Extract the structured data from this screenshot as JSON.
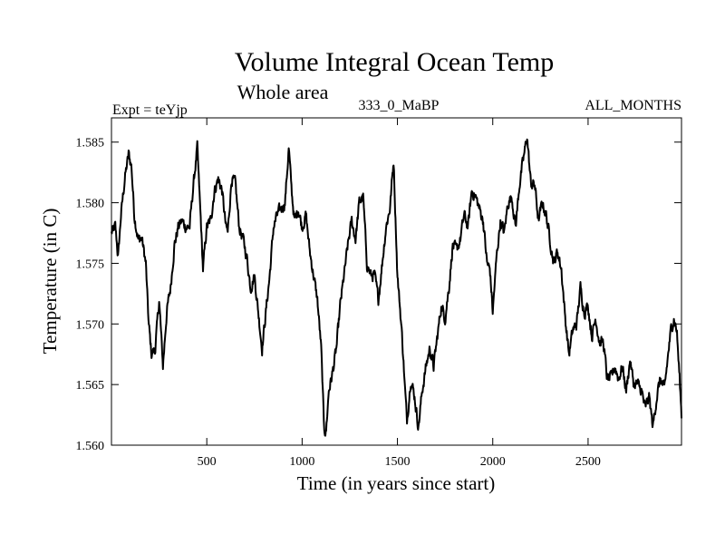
{
  "chart_data": {
    "type": "line",
    "title": "Volume Integral Ocean Temp",
    "subtitle": "Whole area",
    "experiment_label": "Expt = teYjp",
    "period_label": "333_0_MaBP",
    "months_label": "ALL_MONTHS",
    "xlabel": "Time (in years since start)",
    "ylabel": "Temperature (in C)",
    "xlim": [
      0,
      2990
    ],
    "ylim": [
      1.56,
      1.587
    ],
    "xticks": [
      500,
      1000,
      1500,
      2000,
      2500
    ],
    "yticks": [
      1.56,
      1.565,
      1.57,
      1.575,
      1.58,
      1.585
    ],
    "xtick_labels": [
      "500",
      "1000",
      "1500",
      "2000",
      "2500"
    ],
    "ytick_labels": [
      "1.560",
      "1.565",
      "1.570",
      "1.575",
      "1.580",
      "1.585"
    ],
    "grid": false,
    "series": [
      {
        "name": "Volume integral ocean temperature",
        "color": "#000000",
        "anchors": [
          [
            0,
            1.5775
          ],
          [
            20,
            1.578
          ],
          [
            35,
            1.5755
          ],
          [
            50,
            1.579
          ],
          [
            70,
            1.582
          ],
          [
            90,
            1.584
          ],
          [
            105,
            1.583
          ],
          [
            120,
            1.579
          ],
          [
            140,
            1.577
          ],
          [
            160,
            1.577
          ],
          [
            180,
            1.575
          ],
          [
            195,
            1.57
          ],
          [
            210,
            1.5675
          ],
          [
            230,
            1.568
          ],
          [
            250,
            1.572
          ],
          [
            270,
            1.5665
          ],
          [
            290,
            1.571
          ],
          [
            310,
            1.573
          ],
          [
            330,
            1.5765
          ],
          [
            350,
            1.578
          ],
          [
            370,
            1.5785
          ],
          [
            390,
            1.578
          ],
          [
            410,
            1.578
          ],
          [
            430,
            1.5815
          ],
          [
            450,
            1.5845
          ],
          [
            470,
            1.578
          ],
          [
            480,
            1.5745
          ],
          [
            500,
            1.578
          ],
          [
            520,
            1.5785
          ],
          [
            540,
            1.581
          ],
          [
            560,
            1.582
          ],
          [
            580,
            1.581
          ],
          [
            600,
            1.578
          ],
          [
            610,
            1.5775
          ],
          [
            630,
            1.582
          ],
          [
            650,
            1.5815
          ],
          [
            670,
            1.578
          ],
          [
            690,
            1.577
          ],
          [
            710,
            1.5755
          ],
          [
            730,
            1.573
          ],
          [
            750,
            1.574
          ],
          [
            770,
            1.571
          ],
          [
            790,
            1.568
          ],
          [
            810,
            1.571
          ],
          [
            830,
            1.574
          ],
          [
            850,
            1.578
          ],
          [
            870,
            1.579
          ],
          [
            890,
            1.5795
          ],
          [
            910,
            1.58
          ],
          [
            930,
            1.5845
          ],
          [
            945,
            1.581
          ],
          [
            960,
            1.5785
          ],
          [
            980,
            1.5795
          ],
          [
            1000,
            1.578
          ],
          [
            1020,
            1.579
          ],
          [
            1040,
            1.576
          ],
          [
            1060,
            1.574
          ],
          [
            1080,
            1.572
          ],
          [
            1100,
            1.568
          ],
          [
            1115,
            1.5615
          ],
          [
            1125,
            1.561
          ],
          [
            1140,
            1.5645
          ],
          [
            1160,
            1.566
          ],
          [
            1180,
            1.568
          ],
          [
            1200,
            1.5715
          ],
          [
            1220,
            1.574
          ],
          [
            1240,
            1.5765
          ],
          [
            1260,
            1.5785
          ],
          [
            1280,
            1.577
          ],
          [
            1300,
            1.58
          ],
          [
            1320,
            1.5805
          ],
          [
            1340,
            1.575
          ],
          [
            1360,
            1.574
          ],
          [
            1380,
            1.574
          ],
          [
            1400,
            1.572
          ],
          [
            1420,
            1.575
          ],
          [
            1440,
            1.578
          ],
          [
            1460,
            1.5795
          ],
          [
            1480,
            1.5835
          ],
          [
            1500,
            1.574
          ],
          [
            1520,
            1.57
          ],
          [
            1530,
            1.5675
          ],
          [
            1540,
            1.5645
          ],
          [
            1550,
            1.562
          ],
          [
            1570,
            1.5655
          ],
          [
            1590,
            1.564
          ],
          [
            1610,
            1.5615
          ],
          [
            1630,
            1.5645
          ],
          [
            1650,
            1.5665
          ],
          [
            1670,
            1.568
          ],
          [
            1690,
            1.5665
          ],
          [
            1710,
            1.569
          ],
          [
            1730,
            1.5715
          ],
          [
            1750,
            1.5705
          ],
          [
            1770,
            1.573
          ],
          [
            1790,
            1.5765
          ],
          [
            1810,
            1.576
          ],
          [
            1830,
            1.577
          ],
          [
            1850,
            1.579
          ],
          [
            1870,
            1.578
          ],
          [
            1890,
            1.581
          ],
          [
            1910,
            1.5805
          ],
          [
            1930,
            1.5795
          ],
          [
            1950,
            1.5785
          ],
          [
            1970,
            1.575
          ],
          [
            1985,
            1.5745
          ],
          [
            2000,
            1.571
          ],
          [
            2020,
            1.5755
          ],
          [
            2040,
            1.5785
          ],
          [
            2060,
            1.5775
          ],
          [
            2080,
            1.58
          ],
          [
            2100,
            1.5805
          ],
          [
            2120,
            1.578
          ],
          [
            2140,
            1.5815
          ],
          [
            2160,
            1.5835
          ],
          [
            2180,
            1.5855
          ],
          [
            2200,
            1.5815
          ],
          [
            2220,
            1.5815
          ],
          [
            2240,
            1.5785
          ],
          [
            2260,
            1.58
          ],
          [
            2280,
            1.579
          ],
          [
            2300,
            1.577
          ],
          [
            2320,
            1.575
          ],
          [
            2340,
            1.576
          ],
          [
            2360,
            1.5745
          ],
          [
            2380,
            1.5705
          ],
          [
            2400,
            1.5675
          ],
          [
            2420,
            1.5695
          ],
          [
            2440,
            1.57
          ],
          [
            2460,
            1.573
          ],
          [
            2480,
            1.571
          ],
          [
            2500,
            1.5715
          ],
          [
            2520,
            1.569
          ],
          [
            2540,
            1.5705
          ],
          [
            2560,
            1.5685
          ],
          [
            2580,
            1.5685
          ],
          [
            2600,
            1.5655
          ],
          [
            2620,
            1.5655
          ],
          [
            2640,
            1.5665
          ],
          [
            2660,
            1.5655
          ],
          [
            2680,
            1.5665
          ],
          [
            2700,
            1.5645
          ],
          [
            2720,
            1.567
          ],
          [
            2740,
            1.565
          ],
          [
            2760,
            1.565
          ],
          [
            2780,
            1.5645
          ],
          [
            2800,
            1.563
          ],
          [
            2820,
            1.564
          ],
          [
            2840,
            1.5615
          ],
          [
            2860,
            1.564
          ],
          [
            2880,
            1.5655
          ],
          [
            2900,
            1.5645
          ],
          [
            2920,
            1.5675
          ],
          [
            2935,
            1.5695
          ],
          [
            2950,
            1.5705
          ],
          [
            2965,
            1.5695
          ],
          [
            2980,
            1.5655
          ],
          [
            2990,
            1.5625
          ]
        ],
        "noise_amplitude": 0.0008
      }
    ]
  }
}
